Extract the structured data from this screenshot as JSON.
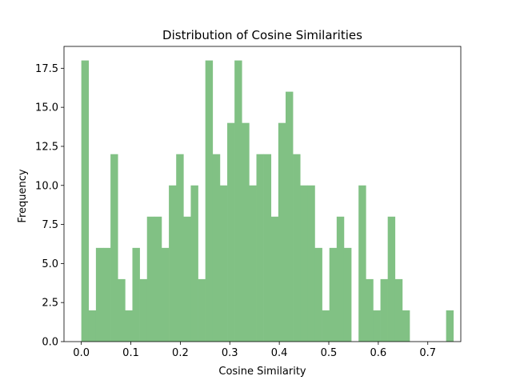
{
  "chart_data": {
    "type": "bar",
    "title": "Distribution of Cosine Similarities",
    "xlabel": "Cosine Similarity",
    "ylabel": "Frequency",
    "xlim": [
      -0.035,
      0.7667
    ],
    "ylim": [
      0,
      18.9
    ],
    "bar_color": "#81c184",
    "bin_start": 0.0,
    "bin_width": 0.01474,
    "values": [
      18,
      2,
      6,
      6,
      12,
      4,
      2,
      6,
      4,
      8,
      8,
      6,
      10,
      12,
      8,
      10,
      4,
      18,
      12,
      10,
      14,
      18,
      14,
      10,
      12,
      12,
      8,
      14,
      16,
      12,
      10,
      10,
      6,
      2,
      6,
      8,
      6,
      0,
      10,
      4,
      2,
      4,
      8,
      4,
      2,
      0,
      0,
      0,
      0,
      0,
      2
    ],
    "xticks": [
      0.0,
      0.1,
      0.2,
      0.3,
      0.4,
      0.5,
      0.6,
      0.7
    ],
    "xtick_labels": [
      "0.0",
      "0.1",
      "0.2",
      "0.3",
      "0.4",
      "0.5",
      "0.6",
      "0.7"
    ],
    "yticks": [
      0.0,
      2.5,
      5.0,
      7.5,
      10.0,
      12.5,
      15.0,
      17.5
    ],
    "ytick_labels": [
      "0.0",
      "2.5",
      "5.0",
      "7.5",
      "10.0",
      "12.5",
      "15.0",
      "17.5"
    ],
    "grid": false,
    "legend": "none"
  }
}
